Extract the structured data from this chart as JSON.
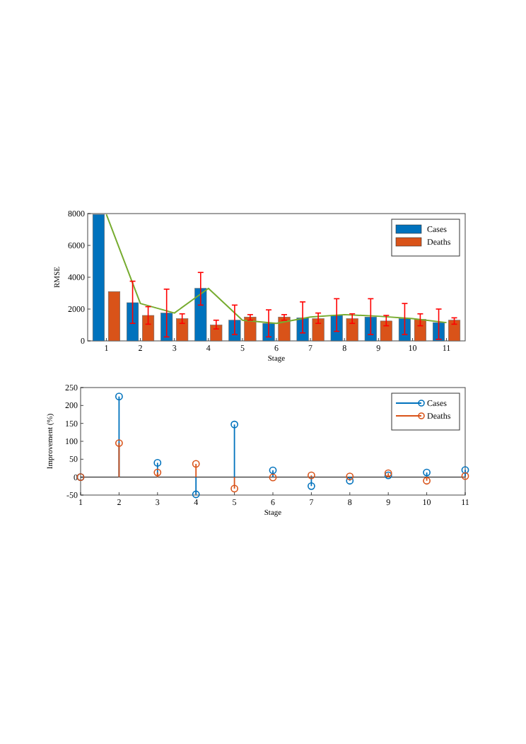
{
  "chart_data": [
    {
      "type": "bar",
      "xlabel": "Stage",
      "ylabel": "RMSE",
      "categories": [
        "1",
        "2",
        "3",
        "4",
        "5",
        "6",
        "7",
        "8",
        "9",
        "10",
        "11"
      ],
      "series": [
        {
          "name": "Cases",
          "color": "#0072bd",
          "values": [
            7950,
            2400,
            1750,
            3300,
            1300,
            1100,
            1450,
            1600,
            1500,
            1400,
            1150
          ],
          "errors": [
            null,
            [
              1100,
              3750
            ],
            [
              250,
              3250
            ],
            [
              2250,
              4300
            ],
            [
              400,
              2250
            ],
            [
              250,
              1950
            ],
            [
              500,
              2450
            ],
            [
              600,
              2650
            ],
            [
              400,
              2650
            ],
            [
              400,
              2350
            ],
            [
              100,
              2000
            ]
          ]
        },
        {
          "name": "Deaths",
          "color": "#d95319",
          "values": [
            3100,
            1600,
            1400,
            1000,
            1500,
            1500,
            1400,
            1400,
            1250,
            1350,
            1300
          ],
          "errors": [
            null,
            [
              1050,
              2150
            ],
            [
              1100,
              1700
            ],
            [
              750,
              1300
            ],
            [
              1300,
              1650
            ],
            [
              1300,
              1650
            ],
            [
              1100,
              1750
            ],
            [
              1100,
              1700
            ],
            [
              950,
              1600
            ],
            [
              950,
              1700
            ],
            [
              1050,
              1450
            ]
          ]
        },
        {
          "type": "line",
          "color": "#77ac30",
          "values": [
            7950,
            2350,
            1750,
            3300,
            1300,
            1100,
            1500,
            1650,
            1550,
            1400,
            1150
          ]
        }
      ],
      "ylim": [
        0,
        8000
      ],
      "yticks": [
        0,
        2000,
        4000,
        6000,
        8000
      ],
      "grid": false,
      "legend": "top right"
    },
    {
      "type": "lollipop",
      "xlabel": "Stage",
      "ylabel": "Improvement (%)",
      "x": [
        1,
        2,
        3,
        4,
        5,
        6,
        7,
        8,
        9,
        10,
        11
      ],
      "series": [
        {
          "name": "Cases",
          "color": "#0072bd",
          "values": [
            0,
            225,
            40,
            -48,
            147,
            19,
            -25,
            -10,
            5,
            13,
            20
          ]
        },
        {
          "name": "Deaths",
          "color": "#d95319",
          "values": [
            0,
            95,
            13,
            37,
            -32,
            -1,
            5,
            2,
            11,
            -10,
            3
          ]
        }
      ],
      "xlim": [
        1,
        11
      ],
      "xticks": [
        1,
        2,
        3,
        4,
        5,
        6,
        7,
        8,
        9,
        10,
        11
      ],
      "ylim": [
        -50,
        250
      ],
      "yticks": [
        -50,
        0,
        50,
        100,
        150,
        200,
        250
      ],
      "ref_lines": [
        {
          "axis": "y",
          "value": 0
        }
      ],
      "marker": "circle",
      "grid": false,
      "legend": "top right"
    }
  ]
}
